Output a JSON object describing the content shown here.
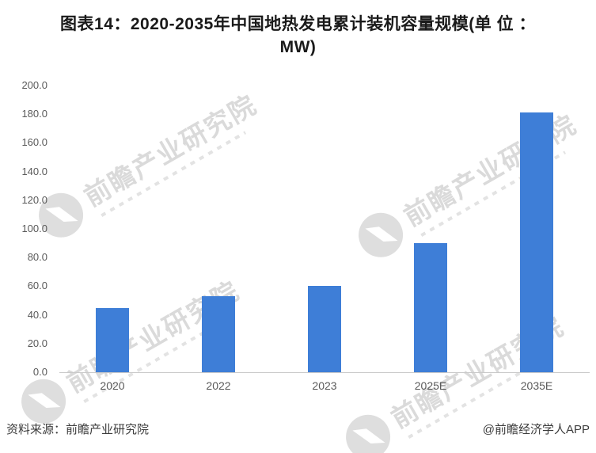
{
  "title": {
    "line1": "图表14：2020-2035年中国地热发电累计装机容量规模(单 位 ：",
    "line2": "MW)"
  },
  "chart_data": {
    "type": "bar",
    "title": "2020-2035年中国地热发电累计装机容量规模",
    "unit": "MW",
    "categories": [
      "2020",
      "2022",
      "2023",
      "2025E",
      "2035E"
    ],
    "values": [
      45,
      53,
      60,
      90,
      181
    ],
    "xlabel": "",
    "ylabel": "",
    "ylim": [
      0,
      200
    ],
    "ytick_step": 20,
    "yticks": [
      "200.0",
      "180.0",
      "160.0",
      "140.0",
      "120.0",
      "100.0",
      "80.0",
      "60.0",
      "40.0",
      "20.0",
      "0.0"
    ],
    "grid": false,
    "legend": false,
    "bar_color": "#3e7ed7"
  },
  "footer": {
    "source": "资料来源：前瞻产业研究院",
    "credit": "@前瞻经济学人APP"
  },
  "watermark": {
    "text": "前瞻产业研究院"
  },
  "colors": {
    "bar": "#3e7ed7",
    "axis_line": "#c9c9c9",
    "tick_label": "#595959",
    "title_text": "#1a1a1a",
    "footer_text": "#3d3d3d",
    "watermark": "#dadada"
  }
}
